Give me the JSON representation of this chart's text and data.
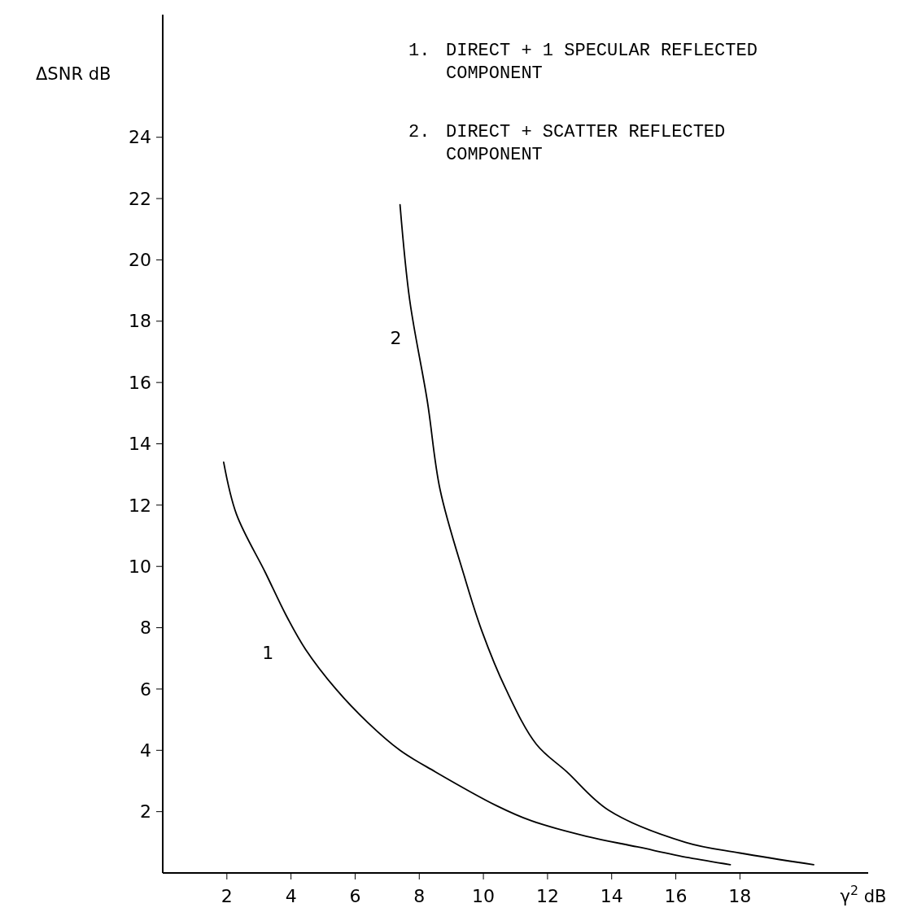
{
  "chart_data": {
    "type": "line",
    "xlabel": "γ$^{2}$ dB",
    "ylabel": "ΔSNR dB",
    "xlim": [
      0,
      22
    ],
    "ylim": [
      0,
      28
    ],
    "xticks": [
      2,
      4,
      6,
      8,
      10,
      12,
      14,
      16,
      18
    ],
    "yticks": [
      2,
      4,
      6,
      8,
      10,
      12,
      14,
      16,
      18,
      20,
      22,
      24
    ],
    "grid": false,
    "marker": "none",
    "line_style": "solid",
    "annotations": [
      "1. DIRECT + 1 SPECULAR REFLECTED COMPONENT",
      "2. DIRECT + SCATTER REFLECTED COMPONENT"
    ],
    "series": [
      {
        "name": "1",
        "color": "#000000",
        "x": [
          1.9,
          2.3,
          3.2,
          3.85,
          4.45,
          5.4,
          6.4,
          7.4,
          8.5,
          10.4,
          11.5,
          13.2,
          14.8,
          16.4,
          17.7
        ],
        "values": [
          13.4,
          11.7,
          9.8,
          8.4,
          7.3,
          6.0,
          4.9,
          4.0,
          3.3,
          2.2,
          1.7,
          1.2,
          0.85,
          0.5,
          0.27
        ]
      },
      {
        "name": "2",
        "color": "#000000",
        "x": [
          7.4,
          7.7,
          8.25,
          8.65,
          9.4,
          9.95,
          10.7,
          11.65,
          12.6,
          13.9,
          16.3,
          18.0,
          20.3
        ],
        "values": [
          21.8,
          18.7,
          15.4,
          12.5,
          9.7,
          7.9,
          6.0,
          4.2,
          3.3,
          2.05,
          1.0,
          0.65,
          0.27
        ]
      }
    ]
  }
}
